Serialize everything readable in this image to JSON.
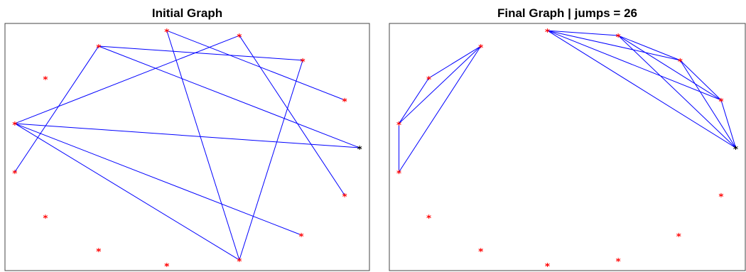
{
  "chart_data": [
    {
      "type": "graph",
      "title": "Initial Graph",
      "x": [
        44.4,
        64.3,
        25.7,
        81.7,
        11.1,
        93.2,
        2.7,
        97.3,
        2.7,
        93.2,
        11.1,
        81.3,
        25.7,
        64.3,
        44.4
      ],
      "y": [
        97.1,
        95.1,
        90.8,
        85.1,
        77.9,
        69.0,
        59.5,
        49.7,
        39.9,
        30.5,
        21.8,
        14.4,
        8.3,
        4.3,
        2.3
      ],
      "colors": [
        "#ff0000",
        "#ff0000",
        "#ff0000",
        "#ff0000",
        "#ff0000",
        "#ff0000",
        "#ff0000",
        "#000000",
        "#ff0000",
        "#ff0000",
        "#ff0000",
        "#ff0000",
        "#ff0000",
        "#ff0000",
        "#ff0000"
      ],
      "edges": [
        [
          2,
          3
        ],
        [
          2,
          7
        ],
        [
          0,
          5
        ],
        [
          0,
          13
        ],
        [
          1,
          9
        ],
        [
          8,
          2
        ],
        [
          6,
          1
        ],
        [
          6,
          7
        ],
        [
          6,
          11
        ],
        [
          6,
          13
        ],
        [
          3,
          13
        ]
      ],
      "edge_color": "#0000ff",
      "xlim": [
        0,
        100
      ],
      "ylim": [
        0,
        100
      ]
    },
    {
      "type": "graph",
      "title": "Final Graph | jumps = 26",
      "x": [
        44.4,
        64.3,
        25.7,
        81.7,
        11.1,
        93.2,
        2.7,
        97.3,
        2.7,
        93.2,
        11.1,
        81.3,
        25.7,
        64.3,
        44.4
      ],
      "y": [
        97.1,
        95.1,
        90.8,
        85.1,
        77.9,
        69.0,
        59.5,
        49.7,
        39.9,
        30.5,
        21.8,
        14.4,
        8.3,
        4.3,
        2.3
      ],
      "colors": [
        "#ff0000",
        "#ff0000",
        "#ff0000",
        "#ff0000",
        "#ff0000",
        "#ff0000",
        "#ff0000",
        "#000000",
        "#ff0000",
        "#ff0000",
        "#ff0000",
        "#ff0000",
        "#ff0000",
        "#ff0000",
        "#ff0000"
      ],
      "edges": [
        [
          2,
          4
        ],
        [
          2,
          6
        ],
        [
          2,
          8
        ],
        [
          4,
          6
        ],
        [
          6,
          8
        ],
        [
          0,
          1
        ],
        [
          0,
          3
        ],
        [
          0,
          5
        ],
        [
          0,
          7
        ],
        [
          1,
          3
        ],
        [
          1,
          5
        ],
        [
          1,
          7
        ],
        [
          3,
          5
        ],
        [
          3,
          7
        ],
        [
          5,
          7
        ]
      ],
      "edge_color": "#0000ff",
      "xlim": [
        0,
        100
      ],
      "ylim": [
        0,
        100
      ]
    }
  ]
}
